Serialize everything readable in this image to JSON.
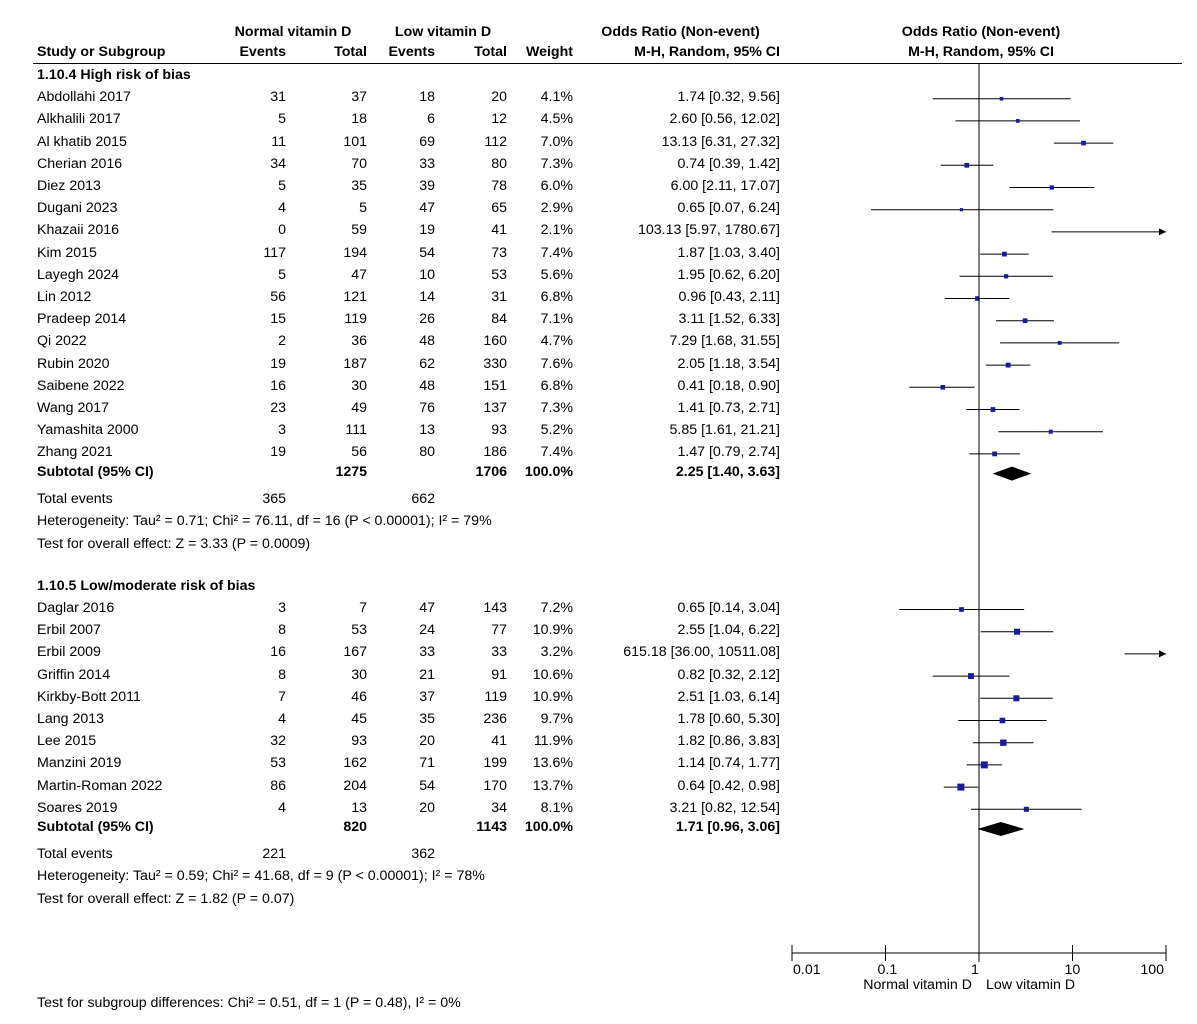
{
  "headers": {
    "group1": "Normal vitamin D",
    "group2": "Low vitamin D",
    "or_table_title": "Odds Ratio (Non-event)",
    "or_plot_title": "Odds Ratio (Non-event)",
    "study": "Study or Subgroup",
    "events1": "Events",
    "total1": "Total",
    "events2": "Events",
    "total2": "Total",
    "weight": "Weight",
    "or_table_method": "M-H, Random, 95% CI",
    "or_plot_method": "M-H, Random, 95% CI"
  },
  "chart_data": {
    "type": "forest",
    "x_scale": "log",
    "xlim": [
      0.01,
      100
    ],
    "x_ticks": [
      0.01,
      0.1,
      1,
      10,
      100
    ],
    "x_tick_labels": [
      "0.01",
      "0.1",
      "1",
      "10",
      "100"
    ],
    "favours_left": "Normal vitamin D",
    "favours_right": "Low vitamin D",
    "subgroups": [
      {
        "title": "1.10.4 High risk of bias",
        "studies": [
          {
            "name": "Abdollahi 2017",
            "e1": "31",
            "t1": "37",
            "e2": "18",
            "t2": "20",
            "weight": "4.1%",
            "or_text": "1.74 [0.32, 9.56]",
            "or": 1.74,
            "lo": 0.32,
            "hi": 9.56
          },
          {
            "name": "Alkhalili 2017",
            "e1": "5",
            "t1": "18",
            "e2": "6",
            "t2": "12",
            "weight": "4.5%",
            "or_text": "2.60 [0.56, 12.02]",
            "or": 2.6,
            "lo": 0.56,
            "hi": 12.02
          },
          {
            "name": "Al khatib 2015",
            "e1": "11",
            "t1": "101",
            "e2": "69",
            "t2": "112",
            "weight": "7.0%",
            "or_text": "13.13 [6.31, 27.32]",
            "or": 13.13,
            "lo": 6.31,
            "hi": 27.32
          },
          {
            "name": "Cherian 2016",
            "e1": "34",
            "t1": "70",
            "e2": "33",
            "t2": "80",
            "weight": "7.3%",
            "or_text": "0.74 [0.39, 1.42]",
            "or": 0.74,
            "lo": 0.39,
            "hi": 1.42
          },
          {
            "name": "Diez 2013",
            "e1": "5",
            "t1": "35",
            "e2": "39",
            "t2": "78",
            "weight": "6.0%",
            "or_text": "6.00 [2.11, 17.07]",
            "or": 6.0,
            "lo": 2.11,
            "hi": 17.07
          },
          {
            "name": "Dugani 2023",
            "e1": "4",
            "t1": "5",
            "e2": "47",
            "t2": "65",
            "weight": "2.9%",
            "or_text": "0.65 [0.07, 6.24]",
            "or": 0.65,
            "lo": 0.07,
            "hi": 6.24
          },
          {
            "name": "Khazaii 2016",
            "e1": "0",
            "t1": "59",
            "e2": "19",
            "t2": "41",
            "weight": "2.1%",
            "or_text": "103.13 [5.97, 1780.67]",
            "or": 103.13,
            "lo": 5.97,
            "hi": 1780.67
          },
          {
            "name": "Kim 2015",
            "e1": "117",
            "t1": "194",
            "e2": "54",
            "t2": "73",
            "weight": "7.4%",
            "or_text": "1.87 [1.03, 3.40]",
            "or": 1.87,
            "lo": 1.03,
            "hi": 3.4
          },
          {
            "name": "Layegh 2024",
            "e1": "5",
            "t1": "47",
            "e2": "10",
            "t2": "53",
            "weight": "5.6%",
            "or_text": "1.95 [0.62, 6.20]",
            "or": 1.95,
            "lo": 0.62,
            "hi": 6.2
          },
          {
            "name": "Lin 2012",
            "e1": "56",
            "t1": "121",
            "e2": "14",
            "t2": "31",
            "weight": "6.8%",
            "or_text": "0.96 [0.43, 2.11]",
            "or": 0.96,
            "lo": 0.43,
            "hi": 2.11
          },
          {
            "name": "Pradeep 2014",
            "e1": "15",
            "t1": "119",
            "e2": "26",
            "t2": "84",
            "weight": "7.1%",
            "or_text": "3.11 [1.52, 6.33]",
            "or": 3.11,
            "lo": 1.52,
            "hi": 6.33
          },
          {
            "name": "Qi 2022",
            "e1": "2",
            "t1": "36",
            "e2": "48",
            "t2": "160",
            "weight": "4.7%",
            "or_text": "7.29 [1.68, 31.55]",
            "or": 7.29,
            "lo": 1.68,
            "hi": 31.55
          },
          {
            "name": "Rubin 2020",
            "e1": "19",
            "t1": "187",
            "e2": "62",
            "t2": "330",
            "weight": "7.6%",
            "or_text": "2.05 [1.18, 3.54]",
            "or": 2.05,
            "lo": 1.18,
            "hi": 3.54
          },
          {
            "name": "Saibene 2022",
            "e1": "16",
            "t1": "30",
            "e2": "48",
            "t2": "151",
            "weight": "6.8%",
            "or_text": "0.41 [0.18, 0.90]",
            "or": 0.41,
            "lo": 0.18,
            "hi": 0.9
          },
          {
            "name": "Wang 2017",
            "e1": "23",
            "t1": "49",
            "e2": "76",
            "t2": "137",
            "weight": "7.3%",
            "or_text": "1.41 [0.73, 2.71]",
            "or": 1.41,
            "lo": 0.73,
            "hi": 2.71
          },
          {
            "name": "Yamashita 2000",
            "e1": "3",
            "t1": "111",
            "e2": "13",
            "t2": "93",
            "weight": "5.2%",
            "or_text": "5.85 [1.61, 21.21]",
            "or": 5.85,
            "lo": 1.61,
            "hi": 21.21
          },
          {
            "name": "Zhang 2021",
            "e1": "19",
            "t1": "56",
            "e2": "80",
            "t2": "186",
            "weight": "7.4%",
            "or_text": "1.47 [0.79, 2.74]",
            "or": 1.47,
            "lo": 0.79,
            "hi": 2.74
          }
        ],
        "subtotal": {
          "label": "Subtotal (95% CI)",
          "t1": "1275",
          "t2": "1706",
          "weight": "100.0%",
          "or_text": "2.25 [1.40, 3.63]",
          "or": 2.25,
          "lo": 1.4,
          "hi": 3.63
        },
        "total_events": {
          "label": "Total events",
          "e1": "365",
          "e2": "662"
        },
        "heterogeneity": "Heterogeneity: Tau² = 0.71; Chi² = 76.11, df = 16 (P < 0.00001); I² = 79%",
        "overall": "Test for overall effect: Z = 3.33 (P = 0.0009)"
      },
      {
        "title": "1.10.5 Low/moderate risk of bias",
        "studies": [
          {
            "name": "Daglar 2016",
            "e1": "3",
            "t1": "7",
            "e2": "47",
            "t2": "143",
            "weight": "7.2%",
            "or_text": "0.65 [0.14, 3.04]",
            "or": 0.65,
            "lo": 0.14,
            "hi": 3.04
          },
          {
            "name": "Erbil 2007",
            "e1": "8",
            "t1": "53",
            "e2": "24",
            "t2": "77",
            "weight": "10.9%",
            "or_text": "2.55 [1.04, 6.22]",
            "or": 2.55,
            "lo": 1.04,
            "hi": 6.22
          },
          {
            "name": "Erbil 2009",
            "e1": "16",
            "t1": "167",
            "e2": "33",
            "t2": "33",
            "weight": "3.2%",
            "or_text": "615.18 [36.00, 10511.08]",
            "or": 615.18,
            "lo": 36.0,
            "hi": 10511.08
          },
          {
            "name": "Griffin 2014",
            "e1": "8",
            "t1": "30",
            "e2": "21",
            "t2": "91",
            "weight": "10.6%",
            "or_text": "0.82 [0.32, 2.12]",
            "or": 0.82,
            "lo": 0.32,
            "hi": 2.12
          },
          {
            "name": "Kirkby-Bott 2011",
            "e1": "7",
            "t1": "46",
            "e2": "37",
            "t2": "119",
            "weight": "10.9%",
            "or_text": "2.51 [1.03, 6.14]",
            "or": 2.51,
            "lo": 1.03,
            "hi": 6.14
          },
          {
            "name": "Lang 2013",
            "e1": "4",
            "t1": "45",
            "e2": "35",
            "t2": "236",
            "weight": "9.7%",
            "or_text": "1.78 [0.60, 5.30]",
            "or": 1.78,
            "lo": 0.6,
            "hi": 5.3
          },
          {
            "name": "Lee 2015",
            "e1": "32",
            "t1": "93",
            "e2": "20",
            "t2": "41",
            "weight": "11.9%",
            "or_text": "1.82 [0.86, 3.83]",
            "or": 1.82,
            "lo": 0.86,
            "hi": 3.83
          },
          {
            "name": "Manzini 2019",
            "e1": "53",
            "t1": "162",
            "e2": "71",
            "t2": "199",
            "weight": "13.6%",
            "or_text": "1.14 [0.74, 1.77]",
            "or": 1.14,
            "lo": 0.74,
            "hi": 1.77
          },
          {
            "name": "Martin-Roman 2022",
            "e1": "86",
            "t1": "204",
            "e2": "54",
            "t2": "170",
            "weight": "13.7%",
            "or_text": "0.64 [0.42, 0.98]",
            "or": 0.64,
            "lo": 0.42,
            "hi": 0.98
          },
          {
            "name": "Soares 2019",
            "e1": "4",
            "t1": "13",
            "e2": "20",
            "t2": "34",
            "weight": "8.1%",
            "or_text": "3.21 [0.82, 12.54]",
            "or": 3.21,
            "lo": 0.82,
            "hi": 12.54
          }
        ],
        "subtotal": {
          "label": "Subtotal (95% CI)",
          "t1": "820",
          "t2": "1143",
          "weight": "100.0%",
          "or_text": "1.71 [0.96, 3.06]",
          "or": 1.71,
          "lo": 0.96,
          "hi": 3.06
        },
        "total_events": {
          "label": "Total events",
          "e1": "221",
          "e2": "362"
        },
        "heterogeneity": "Heterogeneity: Tau² = 0.59; Chi² = 41.68, df = 9 (P < 0.00001); I² = 78%",
        "overall": "Test for overall effect: Z = 1.82 (P = 0.07)"
      }
    ],
    "subgroup_differences": "Test for subgroup differences: Chi² = 0.51, df = 1 (P = 0.48), I² = 0%"
  },
  "colors": {
    "marker": "#1a1aa6",
    "line": "#000000",
    "diamond": "#000000"
  }
}
